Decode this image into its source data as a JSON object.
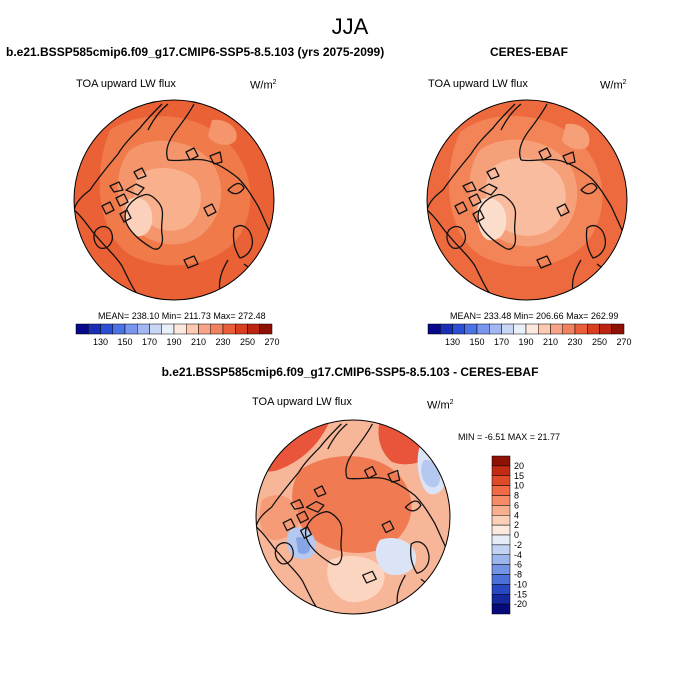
{
  "season": "JJA",
  "panels": {
    "model": {
      "title": "b.e21.BSSP585cmip6.f09_g17.CMIP6-SSP5-8.5.103 (yrs 2075-2099)",
      "variable": "TOA upward LW flux",
      "units_base": "W/m",
      "units_exp": "2",
      "stats": "MEAN= 238.10  Min= 211.73  Max= 272.48"
    },
    "obs": {
      "title": "CERES-EBAF",
      "variable": "TOA upward LW flux",
      "units_base": "W/m",
      "units_exp": "2",
      "stats": "MEAN= 233.48  Min= 206.66  Max= 262.99"
    },
    "diff": {
      "title": "b.e21.BSSP585cmip6.f09_g17.CMIP6-SSP5-8.5.103 - CERES-EBAF",
      "variable": "TOA upward LW flux",
      "units_base": "W/m",
      "units_exp": "2",
      "stats": "MIN =  -6.51 MAX =  21.77"
    }
  },
  "colorbars": {
    "main": {
      "labels": [
        "130",
        "150",
        "170",
        "190",
        "210",
        "230",
        "250",
        "270"
      ],
      "colors": [
        "#08088a",
        "#1a2fb5",
        "#2c50d4",
        "#4b72e6",
        "#7896ee",
        "#a3b8f2",
        "#c9d6f6",
        "#eaf0fa",
        "#fde8de",
        "#fcc9b2",
        "#f8a385",
        "#f3815e",
        "#ea5f3a",
        "#d93e22",
        "#bb2511",
        "#8f1005"
      ]
    },
    "diff": {
      "labels": [
        "20",
        "15",
        "10",
        "8",
        "6",
        "4",
        "2",
        "0",
        "-2",
        "-4",
        "-6",
        "-8",
        "-10",
        "-15",
        "-20"
      ],
      "colors": [
        "#8f1005",
        "#c32a13",
        "#e14a27",
        "#f06a43",
        "#f58c67",
        "#f9ae8e",
        "#fcd0b8",
        "#fdeadf",
        "#e6ecf8",
        "#c2d2f2",
        "#9cb5ec",
        "#7394e4",
        "#4c6fd8",
        "#2a47c2",
        "#15279e",
        "#080a7a"
      ]
    }
  },
  "map_colors": {
    "model_bg": "#ea6136",
    "model_zones": [
      "#f07a4a",
      "#f4956b",
      "#f8b08d",
      "#fbd1bb"
    ],
    "obs_bg": "#ed6a3e",
    "obs_zones": [
      "#f28458",
      "#f6a07a",
      "#f9bc9f",
      "#fcdcca"
    ],
    "diff_bg": "#f8b699",
    "diff_warm": [
      "#e8553a",
      "#f07a52",
      "#f59b78",
      "#fcd5c0"
    ],
    "diff_cool": [
      "#dbe4f6",
      "#b5c8ef",
      "#86a4e6"
    ],
    "coast": "#111111"
  }
}
